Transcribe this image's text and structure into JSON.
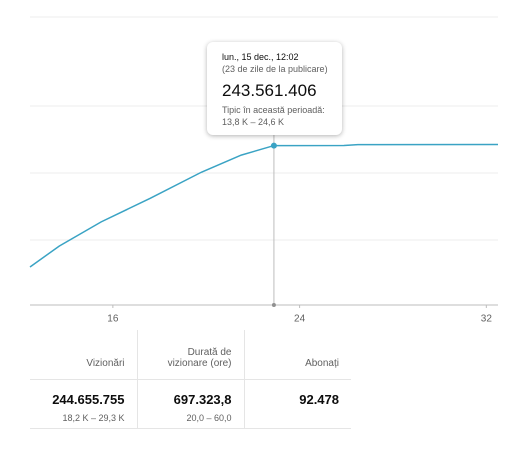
{
  "chart_data": {
    "type": "line",
    "x": [
      12.45,
      13.7,
      15.5,
      17.6,
      19.8,
      21.5,
      22.9,
      25.9,
      26.5,
      32.5
    ],
    "series": [
      {
        "color": "#3aa3c4",
        "values": [
          58000000,
          90000000,
          127000000,
          163000000,
          203000000,
          229000000,
          243561406,
          243700000,
          245000000,
          245200000
        ]
      }
    ],
    "xlim": [
      12.45,
      32.5
    ],
    "xticks": [
      16,
      24,
      32
    ],
    "ylim": [
      0,
      440000000
    ]
  },
  "tooltip": {
    "date": "lun., 15 dec., 12:02",
    "since": "(23 de zile de la publicare)",
    "value": "243.561.406",
    "typical_label": "Tipic în această perioadă:",
    "typical_range": "13,8 K – 24,6 K"
  },
  "table": {
    "headers": [
      "Vizionări",
      "Durată de vizionare (ore)",
      "Abonați"
    ],
    "values": [
      "244.655.755",
      "697.323,8",
      "92.478"
    ],
    "ranges": [
      "18,2 K – 29,3 K",
      "20,0 – 60,0"
    ]
  }
}
